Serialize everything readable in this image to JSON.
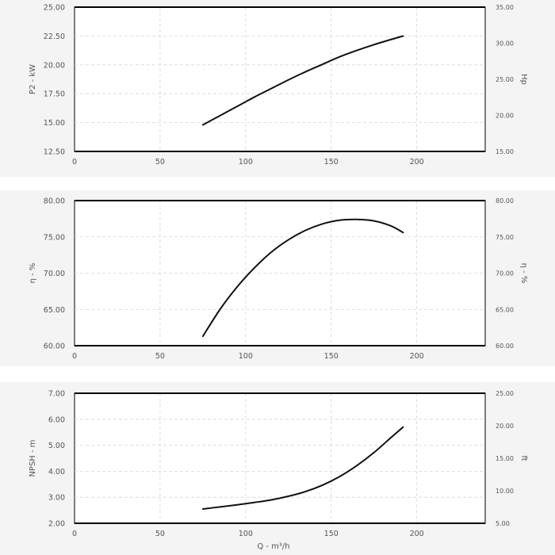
{
  "chart_data": [
    {
      "type": "line",
      "xlabel": "",
      "ylabel": "P2 - kW",
      "y2label": "Hp",
      "xlim": [
        0,
        240
      ],
      "ylim": [
        12.5,
        25.0
      ],
      "y2lim": [
        15.0,
        35.0
      ],
      "x_ticks": [
        "0",
        "50",
        "100",
        "150",
        "200"
      ],
      "y_ticks": [
        "12.50",
        "15.00",
        "17.50",
        "20.00",
        "22.50",
        "25.00"
      ],
      "y2_ticks": [
        "15.00",
        "20.00",
        "25.00",
        "30.00",
        "35.00"
      ],
      "grid": true,
      "series": [
        {
          "x": [
            75,
            85,
            95,
            105,
            115,
            125,
            135,
            145,
            155,
            165,
            175,
            185,
            192
          ],
          "y": [
            14.8,
            15.6,
            16.4,
            17.2,
            17.95,
            18.7,
            19.4,
            20.05,
            20.7,
            21.25,
            21.75,
            22.2,
            22.5
          ]
        }
      ]
    },
    {
      "type": "line",
      "xlabel": "",
      "ylabel": "η - %",
      "y2label": "η - %",
      "xlim": [
        0,
        240
      ],
      "ylim": [
        60.0,
        80.0
      ],
      "y2lim": [
        60.0,
        80.0
      ],
      "x_ticks": [
        "0",
        "50",
        "100",
        "150",
        "200"
      ],
      "y_ticks": [
        "60.00",
        "65.00",
        "70.00",
        "75.00",
        "80.00"
      ],
      "y2_ticks": [
        "60.00",
        "65.00",
        "70.00",
        "75.00",
        "80.00"
      ],
      "grid": true,
      "series": [
        {
          "x": [
            75,
            85,
            95,
            105,
            115,
            125,
            135,
            145,
            155,
            165,
            175,
            185,
            192
          ],
          "y": [
            61.3,
            65.0,
            68.1,
            70.7,
            72.9,
            74.6,
            75.9,
            76.8,
            77.3,
            77.4,
            77.2,
            76.5,
            75.6
          ]
        }
      ]
    },
    {
      "type": "line",
      "xlabel": "Q - m³/h",
      "ylabel": "NPSH - m",
      "y2label": "ft",
      "xlim": [
        0,
        240
      ],
      "ylim": [
        2.0,
        7.0
      ],
      "y2lim": [
        5.0,
        25.0
      ],
      "x_ticks": [
        "0",
        "50",
        "100",
        "150",
        "200"
      ],
      "y_ticks": [
        "2.00",
        "3.00",
        "4.00",
        "5.00",
        "6.00",
        "7.00"
      ],
      "y2_ticks": [
        "5.00",
        "10.00",
        "15.00",
        "20.00",
        "25.00"
      ],
      "grid": true,
      "series": [
        {
          "x": [
            75,
            85,
            95,
            105,
            115,
            125,
            135,
            145,
            155,
            165,
            175,
            185,
            192
          ],
          "y": [
            2.55,
            2.63,
            2.71,
            2.8,
            2.9,
            3.04,
            3.22,
            3.47,
            3.8,
            4.22,
            4.72,
            5.3,
            5.7
          ]
        }
      ]
    }
  ]
}
